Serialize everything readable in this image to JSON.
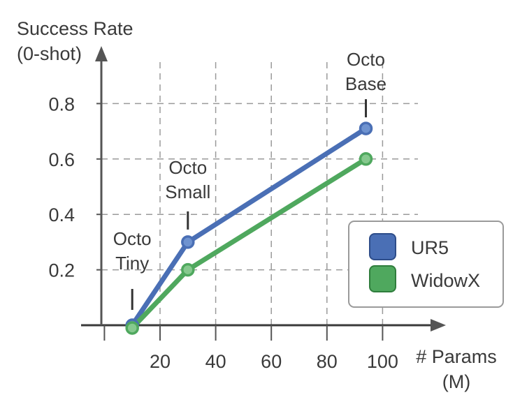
{
  "chart_data": {
    "type": "line",
    "ylabel": [
      "Success Rate",
      "(0-shot)"
    ],
    "xlabel": [
      "# Params",
      "(M)"
    ],
    "xlim": [
      -10,
      122
    ],
    "ylim": [
      0,
      0.92
    ],
    "x_ticks": [
      20,
      40,
      60,
      80,
      100
    ],
    "y_ticks": [
      0.2,
      0.4,
      0.6,
      0.8
    ],
    "x_tick_labels": [
      "20",
      "40",
      "60",
      "80",
      "100"
    ],
    "y_tick_labels": [
      "0.2",
      "0.4",
      "0.6",
      "0.8"
    ],
    "grid": true,
    "legend_position": "right",
    "series": [
      {
        "name": "UR5",
        "color": "#4a6fb5",
        "marker_fill": "#6f93d0",
        "x": [
          10,
          30,
          94
        ],
        "y": [
          0.0,
          0.3,
          0.71
        ]
      },
      {
        "name": "WidowX",
        "color": "#4fa85e",
        "marker_fill": "#86c98e",
        "x": [
          10,
          30,
          94
        ],
        "y": [
          -0.01,
          0.2,
          0.6
        ]
      }
    ],
    "annotations": [
      {
        "lines": [
          "Octo",
          "Tiny"
        ],
        "x": 10,
        "y": 0.0
      },
      {
        "lines": [
          "Octo",
          "Small"
        ],
        "x": 30,
        "y": 0.3
      },
      {
        "lines": [
          "Octo",
          "Base"
        ],
        "x": 94,
        "y": 0.71
      }
    ]
  }
}
